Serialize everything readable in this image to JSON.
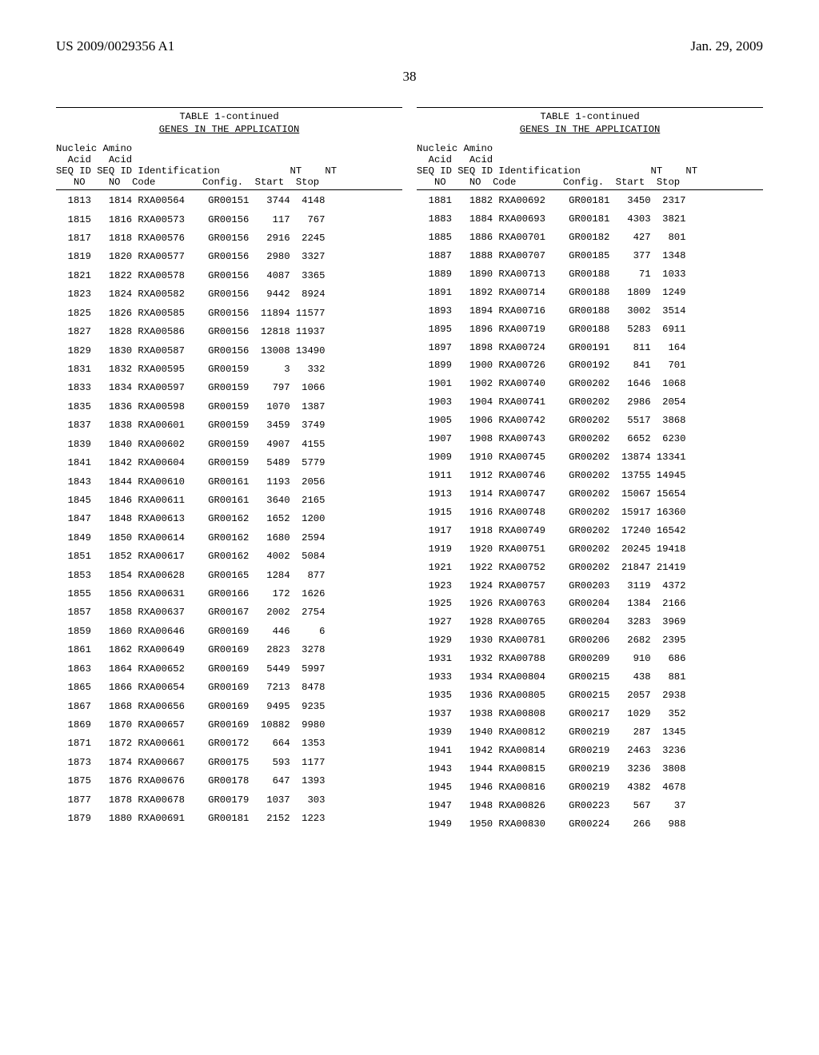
{
  "header": {
    "pub_no": "US 2009/0029356 A1",
    "pub_date": "Jan. 29, 2009",
    "page_num": "38"
  },
  "table": {
    "title": "TABLE 1-continued",
    "subtitle": "GENES IN THE APPLICATION",
    "head_line1": "Nucleic Amino",
    "head_line2": "  Acid   Acid",
    "head_line3": "SEQ ID SEQ ID Identification            NT    NT",
    "head_line4": "   NO    NO  Code        Config.  Start  Stop"
  },
  "left_rows": [
    [
      "1813",
      "1814",
      "RXA00564",
      "GR00151",
      "3744",
      "4148"
    ],
    [
      "1815",
      "1816",
      "RXA00573",
      "GR00156",
      "117",
      "767"
    ],
    [
      "1817",
      "1818",
      "RXA00576",
      "GR00156",
      "2916",
      "2245"
    ],
    [
      "1819",
      "1820",
      "RXA00577",
      "GR00156",
      "2980",
      "3327"
    ],
    [
      "1821",
      "1822",
      "RXA00578",
      "GR00156",
      "4087",
      "3365"
    ],
    [
      "1823",
      "1824",
      "RXA00582",
      "GR00156",
      "9442",
      "8924"
    ],
    [
      "1825",
      "1826",
      "RXA00585",
      "GR00156",
      "11894",
      "11577"
    ],
    [
      "1827",
      "1828",
      "RXA00586",
      "GR00156",
      "12818",
      "11937"
    ],
    [
      "1829",
      "1830",
      "RXA00587",
      "GR00156",
      "13008",
      "13490"
    ],
    [
      "1831",
      "1832",
      "RXA00595",
      "GR00159",
      "3",
      "332"
    ],
    [
      "1833",
      "1834",
      "RXA00597",
      "GR00159",
      "797",
      "1066"
    ],
    [
      "1835",
      "1836",
      "RXA00598",
      "GR00159",
      "1070",
      "1387"
    ],
    [
      "1837",
      "1838",
      "RXA00601",
      "GR00159",
      "3459",
      "3749"
    ],
    [
      "1839",
      "1840",
      "RXA00602",
      "GR00159",
      "4907",
      "4155"
    ],
    [
      "1841",
      "1842",
      "RXA00604",
      "GR00159",
      "5489",
      "5779"
    ],
    [
      "1843",
      "1844",
      "RXA00610",
      "GR00161",
      "1193",
      "2056"
    ],
    [
      "1845",
      "1846",
      "RXA00611",
      "GR00161",
      "3640",
      "2165"
    ],
    [
      "1847",
      "1848",
      "RXA00613",
      "GR00162",
      "1652",
      "1200"
    ],
    [
      "1849",
      "1850",
      "RXA00614",
      "GR00162",
      "1680",
      "2594"
    ],
    [
      "1851",
      "1852",
      "RXA00617",
      "GR00162",
      "4002",
      "5084"
    ],
    [
      "1853",
      "1854",
      "RXA00628",
      "GR00165",
      "1284",
      "877"
    ],
    [
      "1855",
      "1856",
      "RXA00631",
      "GR00166",
      "172",
      "1626"
    ],
    [
      "1857",
      "1858",
      "RXA00637",
      "GR00167",
      "2002",
      "2754"
    ],
    [
      "1859",
      "1860",
      "RXA00646",
      "GR00169",
      "446",
      "6"
    ],
    [
      "1861",
      "1862",
      "RXA00649",
      "GR00169",
      "2823",
      "3278"
    ],
    [
      "1863",
      "1864",
      "RXA00652",
      "GR00169",
      "5449",
      "5997"
    ],
    [
      "1865",
      "1866",
      "RXA00654",
      "GR00169",
      "7213",
      "8478"
    ],
    [
      "1867",
      "1868",
      "RXA00656",
      "GR00169",
      "9495",
      "9235"
    ],
    [
      "1869",
      "1870",
      "RXA00657",
      "GR00169",
      "10882",
      "9980"
    ],
    [
      "1871",
      "1872",
      "RXA00661",
      "GR00172",
      "664",
      "1353"
    ],
    [
      "1873",
      "1874",
      "RXA00667",
      "GR00175",
      "593",
      "1177"
    ],
    [
      "1875",
      "1876",
      "RXA00676",
      "GR00178",
      "647",
      "1393"
    ],
    [
      "1877",
      "1878",
      "RXA00678",
      "GR00179",
      "1037",
      "303"
    ],
    [
      "1879",
      "1880",
      "RXA00691",
      "GR00181",
      "2152",
      "1223"
    ]
  ],
  "right_rows": [
    [
      "1881",
      "1882",
      "RXA00692",
      "GR00181",
      "3450",
      "2317"
    ],
    [
      "1883",
      "1884",
      "RXA00693",
      "GR00181",
      "4303",
      "3821"
    ],
    [
      "1885",
      "1886",
      "RXA00701",
      "GR00182",
      "427",
      "801"
    ],
    [
      "1887",
      "1888",
      "RXA00707",
      "GR00185",
      "377",
      "1348"
    ],
    [
      "1889",
      "1890",
      "RXA00713",
      "GR00188",
      "71",
      "1033"
    ],
    [
      "1891",
      "1892",
      "RXA00714",
      "GR00188",
      "1809",
      "1249"
    ],
    [
      "1893",
      "1894",
      "RXA00716",
      "GR00188",
      "3002",
      "3514"
    ],
    [
      "1895",
      "1896",
      "RXA00719",
      "GR00188",
      "5283",
      "6911"
    ],
    [
      "1897",
      "1898",
      "RXA00724",
      "GR00191",
      "811",
      "164"
    ],
    [
      "1899",
      "1900",
      "RXA00726",
      "GR00192",
      "841",
      "701"
    ],
    [
      "1901",
      "1902",
      "RXA00740",
      "GR00202",
      "1646",
      "1068"
    ],
    [
      "1903",
      "1904",
      "RXA00741",
      "GR00202",
      "2986",
      "2054"
    ],
    [
      "1905",
      "1906",
      "RXA00742",
      "GR00202",
      "5517",
      "3868"
    ],
    [
      "1907",
      "1908",
      "RXA00743",
      "GR00202",
      "6652",
      "6230"
    ],
    [
      "1909",
      "1910",
      "RXA00745",
      "GR00202",
      "13874",
      "13341"
    ],
    [
      "1911",
      "1912",
      "RXA00746",
      "GR00202",
      "13755",
      "14945"
    ],
    [
      "1913",
      "1914",
      "RXA00747",
      "GR00202",
      "15067",
      "15654"
    ],
    [
      "1915",
      "1916",
      "RXA00748",
      "GR00202",
      "15917",
      "16360"
    ],
    [
      "1917",
      "1918",
      "RXA00749",
      "GR00202",
      "17240",
      "16542"
    ],
    [
      "1919",
      "1920",
      "RXA00751",
      "GR00202",
      "20245",
      "19418"
    ],
    [
      "1921",
      "1922",
      "RXA00752",
      "GR00202",
      "21847",
      "21419"
    ],
    [
      "1923",
      "1924",
      "RXA00757",
      "GR00203",
      "3119",
      "4372"
    ],
    [
      "1925",
      "1926",
      "RXA00763",
      "GR00204",
      "1384",
      "2166"
    ],
    [
      "1927",
      "1928",
      "RXA00765",
      "GR00204",
      "3283",
      "3969"
    ],
    [
      "1929",
      "1930",
      "RXA00781",
      "GR00206",
      "2682",
      "2395"
    ],
    [
      "1931",
      "1932",
      "RXA00788",
      "GR00209",
      "910",
      "686"
    ],
    [
      "1933",
      "1934",
      "RXA00804",
      "GR00215",
      "438",
      "881"
    ],
    [
      "1935",
      "1936",
      "RXA00805",
      "GR00215",
      "2057",
      "2938"
    ],
    [
      "1937",
      "1938",
      "RXA00808",
      "GR00217",
      "1029",
      "352"
    ],
    [
      "1939",
      "1940",
      "RXA00812",
      "GR00219",
      "287",
      "1345"
    ],
    [
      "1941",
      "1942",
      "RXA00814",
      "GR00219",
      "2463",
      "3236"
    ],
    [
      "1943",
      "1944",
      "RXA00815",
      "GR00219",
      "3236",
      "3808"
    ],
    [
      "1945",
      "1946",
      "RXA00816",
      "GR00219",
      "4382",
      "4678"
    ],
    [
      "1947",
      "1948",
      "RXA00826",
      "GR00223",
      "567",
      "37"
    ],
    [
      "1949",
      "1950",
      "RXA00830",
      "GR00224",
      "266",
      "988"
    ]
  ]
}
